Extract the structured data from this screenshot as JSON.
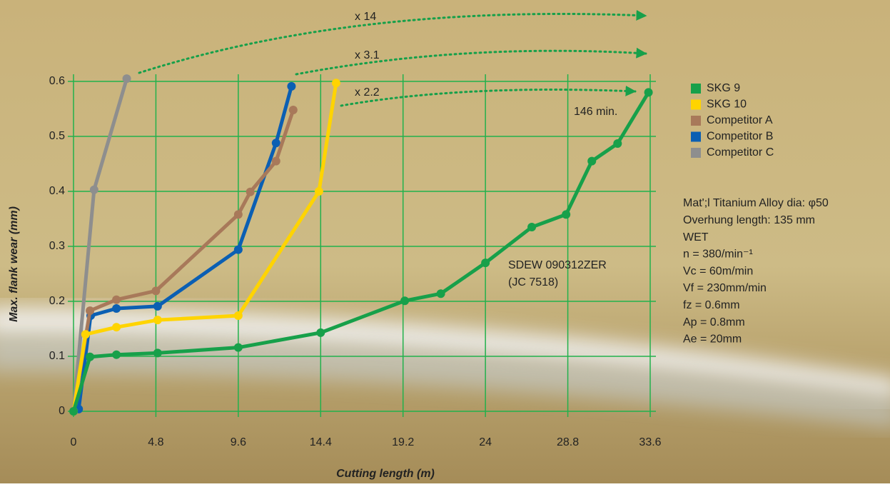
{
  "chart_data": {
    "type": "line",
    "xlabel": "Cutting length (m)",
    "ylabel": "Max. flank wear (mm)",
    "xlim": [
      0,
      33.6
    ],
    "xticks": [
      0,
      4.8,
      9.6,
      14.4,
      19.2,
      24,
      28.8,
      33.6
    ],
    "ylim": [
      0,
      0.6
    ],
    "yticks": [
      0,
      0.1,
      0.2,
      0.3,
      0.4,
      0.5,
      0.6
    ],
    "grid": true,
    "grid_color": "#22b14c",
    "legend": "upper right",
    "series": [
      {
        "name": "SKG 9",
        "color": "#17a04a",
        "x": [
          0,
          0.96,
          2.5,
          4.9,
          9.6,
          14.4,
          19.3,
          21.4,
          24.0,
          26.7,
          28.7,
          30.2,
          31.7,
          33.5
        ],
        "values": [
          0,
          0.099,
          0.103,
          0.106,
          0.116,
          0.143,
          0.201,
          0.214,
          0.27,
          0.335,
          0.358,
          0.455,
          0.487,
          0.58
        ]
      },
      {
        "name": "SKG 10",
        "color": "#ffd400",
        "x": [
          0,
          0.7,
          2.5,
          4.9,
          9.6,
          14.3,
          15.3
        ],
        "values": [
          0,
          0.14,
          0.153,
          0.166,
          0.174,
          0.4,
          0.597
        ]
      },
      {
        "name": "Competitor A",
        "color": "#a8795a",
        "x": [
          0,
          0.96,
          2.5,
          4.8,
          9.6,
          10.3,
          11.8,
          12.8
        ],
        "values": [
          0,
          0.183,
          0.203,
          0.219,
          0.358,
          0.399,
          0.455,
          0.548
        ]
      },
      {
        "name": "Competitor B",
        "color": "#0b5fb3",
        "x": [
          0,
          0.3,
          1.0,
          2.5,
          4.9,
          9.6,
          11.8,
          12.7
        ],
        "values": [
          0,
          0.004,
          0.174,
          0.187,
          0.191,
          0.294,
          0.488,
          0.591
        ]
      },
      {
        "name": "Competitor C",
        "color": "#8e8e8e",
        "x": [
          0,
          1.2,
          3.1
        ],
        "values": [
          0,
          0.403,
          0.605
        ]
      }
    ],
    "annotations": [
      "x 14",
      "x 3.1",
      "x 2.2",
      "146 min.",
      "SDEW 090312ZER",
      "(JC 7518)"
    ],
    "notes": [
      "Mat';l Titanium Alloy dia: φ50",
      "Overhung length: 135 mm",
      "WET",
      "n = 380/min⁻¹",
      "Vc = 60m/min",
      "Vf = 230mm/min",
      "fz = 0.6mm",
      "Ap = 0.8mm",
      "Ae = 20mm"
    ]
  }
}
